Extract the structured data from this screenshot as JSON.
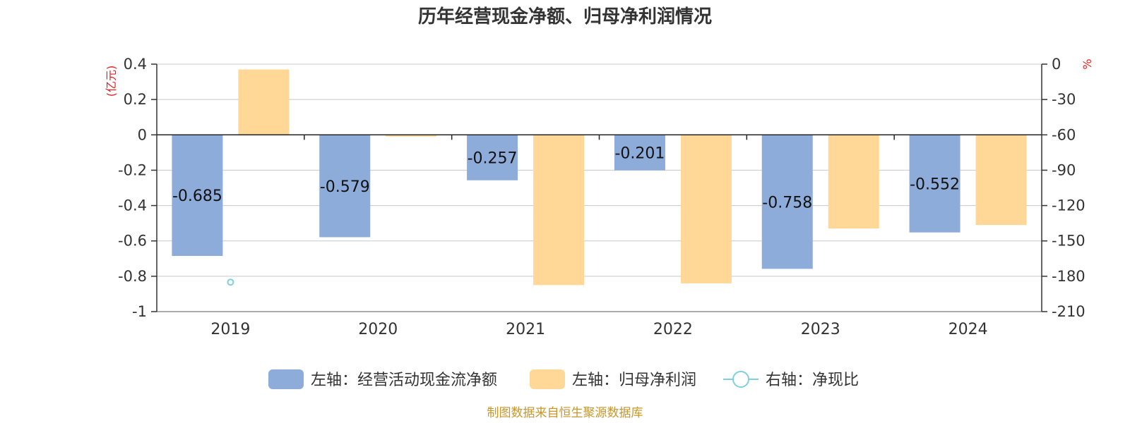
{
  "title": "历年经营现金净额、归母净利润情况",
  "source": "制图数据来自恒生聚源数据库",
  "colors": {
    "cash_flow": "#8eacda",
    "net_profit": "#ffd897",
    "ratio": "#7fd0dc",
    "unit": "#e02020",
    "source": "#c8962a",
    "grid": "#c8c8c8",
    "axis": "#333333"
  },
  "chart_data": {
    "type": "bar",
    "categories": [
      "2019",
      "2020",
      "2021",
      "2022",
      "2023",
      "2024"
    ],
    "series": [
      {
        "name": "左轴：经营活动现金流净额",
        "axis": "left",
        "type": "bar",
        "values": [
          -0.685,
          -0.579,
          -0.257,
          -0.201,
          -0.758,
          -0.552
        ],
        "data_labels": [
          "-0.685",
          "-0.579",
          "-0.257",
          "-0.201",
          "-0.758",
          "-0.552"
        ]
      },
      {
        "name": "左轴：归母净利润",
        "axis": "left",
        "type": "bar",
        "values": [
          0.37,
          -0.01,
          -0.85,
          -0.84,
          -0.53,
          -0.51
        ]
      },
      {
        "name": "右轴：净现比",
        "axis": "right",
        "type": "line",
        "values": [
          -185,
          null,
          null,
          null,
          null,
          null
        ]
      }
    ],
    "left_axis": {
      "unit": "(亿元)",
      "range": [
        -1,
        0.4
      ],
      "ticks": [
        0.4,
        0.2,
        0,
        -0.2,
        -0.4,
        -0.6,
        -0.8,
        -1
      ],
      "tick_labels": [
        "0.4",
        "0.2",
        "0",
        "-0.2",
        "-0.4",
        "-0.6",
        "-0.8",
        "-1"
      ]
    },
    "right_axis": {
      "unit": "%",
      "range": [
        -210,
        0
      ],
      "ticks": [
        0,
        -30,
        -60,
        -90,
        -120,
        -150,
        -180,
        -210
      ],
      "tick_labels": [
        "0",
        "-30",
        "-60",
        "-90",
        "-120",
        "-150",
        "-180",
        "-210"
      ]
    },
    "grid": true,
    "legend_position": "bottom"
  }
}
